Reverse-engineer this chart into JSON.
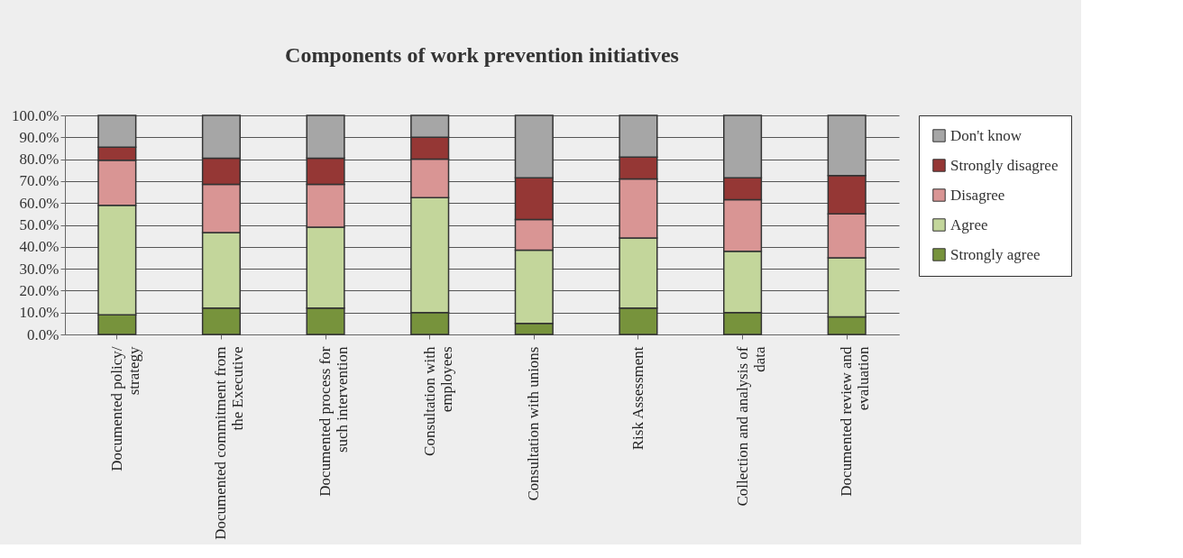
{
  "chart_data": {
    "type": "bar",
    "stacked": true,
    "title": "Components of work prevention initiatives",
    "categories": [
      "Documented policy/ strategy",
      "Documented commitment from the Executive",
      "Documented process for such intervention",
      "Consultation with employees",
      "Consultation with unions",
      "Risk Assessment",
      "Collection and analysis of data",
      "Documented review and evaluation"
    ],
    "series": [
      {
        "name": "Strongly agree",
        "color": "#77933c",
        "values": [
          9,
          12,
          12,
          10,
          5,
          12,
          10,
          8
        ]
      },
      {
        "name": "Agree",
        "color": "#c3d69b",
        "values": [
          50,
          34.5,
          37,
          52.5,
          33.5,
          32,
          28,
          27
        ]
      },
      {
        "name": "Disagree",
        "color": "#d99594",
        "values": [
          20.5,
          22,
          19.5,
          17.5,
          14,
          27,
          23.5,
          20
        ]
      },
      {
        "name": "Strongly disagree",
        "color": "#953735",
        "values": [
          6,
          12,
          12,
          10,
          19,
          10,
          10,
          17.5
        ]
      },
      {
        "name": "Don't know",
        "color": "#a6a6a6",
        "values": [
          14.5,
          19.5,
          19.5,
          10,
          28.5,
          19,
          28.5,
          27.5
        ]
      }
    ],
    "ylim": [
      0,
      100
    ],
    "yticks": [
      {
        "value": 0,
        "label": "0.0%"
      },
      {
        "value": 10,
        "label": "10.0%"
      },
      {
        "value": 20,
        "label": "20.0%"
      },
      {
        "value": 30,
        "label": "30.0%"
      },
      {
        "value": 40,
        "label": "40.0%"
      },
      {
        "value": 50,
        "label": "50.0%"
      },
      {
        "value": 60,
        "label": "60.0%"
      },
      {
        "value": 70,
        "label": "70.0%"
      },
      {
        "value": 80,
        "label": "80.0%"
      },
      {
        "value": 90,
        "label": "90.0%"
      },
      {
        "value": 100,
        "label": "100.0%"
      }
    ],
    "grid": "y",
    "legend": "right"
  }
}
